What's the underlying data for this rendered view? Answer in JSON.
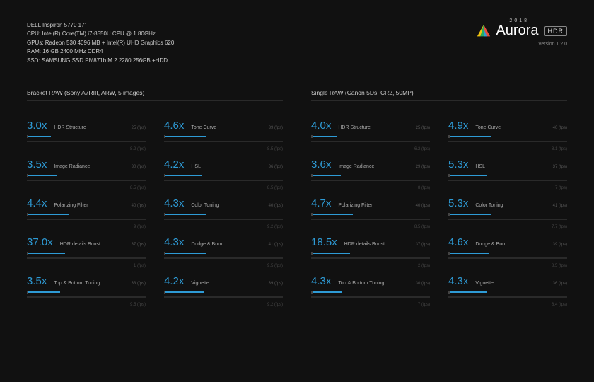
{
  "specs": [
    "DELL Inspiron 5770 17\"",
    "CPU: Intel(R) Core(TM) i7-8550U CPU @ 1.80GHz",
    "GPUs: Radeon 530 4096 MB + Intel(R) UHD Graphics 620",
    "RAM: 16 GB 2400 MHz DDR4",
    "SSD: SAMSUNG SSD PM871b M.2 2280 256GB +HDD"
  ],
  "logo": {
    "year": "2018",
    "name": "Aurora",
    "badge": "HDR",
    "version": "Version 1.2.0"
  },
  "colors": {
    "background": "#111111",
    "accent": "#2e9bd6",
    "bar_bg": "#2a2a2a",
    "text_dim": "#888888",
    "text_faint": "#444444"
  },
  "sections": [
    {
      "title": "Bracket RAW (Sony A7RIII, ARW, 5 images)",
      "metrics": [
        {
          "value": "3.0x",
          "label": "HDR Structure",
          "sub1": "25 (fps)",
          "sub2": "8.2 (fps)",
          "bar_pct": 20
        },
        {
          "value": "4.6x",
          "label": "Tone Curve",
          "sub1": "39 (fps)",
          "sub2": "8.5 (fps)",
          "bar_pct": 35
        },
        {
          "value": "3.5x",
          "label": "Image Radiance",
          "sub1": "30 (fps)",
          "sub2": "8.5 (fps)",
          "bar_pct": 25
        },
        {
          "value": "4.2x",
          "label": "HSL",
          "sub1": "36 (fps)",
          "sub2": "8.5 (fps)",
          "bar_pct": 32
        },
        {
          "value": "4.4x",
          "label": "Polarizing Filter",
          "sub1": "40 (fps)",
          "sub2": "9 (fps)",
          "bar_pct": 36
        },
        {
          "value": "4.3x",
          "label": "Color Toning",
          "sub1": "40 (fps)",
          "sub2": "9.2 (fps)",
          "bar_pct": 35
        },
        {
          "value": "37.0x",
          "label": "HDR details Boost",
          "sub1": "37 (fps)",
          "sub2": "1 (fps)",
          "bar_pct": 32
        },
        {
          "value": "4.3x",
          "label": "Dodge & Burn",
          "sub1": "41 (fps)",
          "sub2": "9.5 (fps)",
          "bar_pct": 36
        },
        {
          "value": "3.5x",
          "label": "Top & Bottom Tuning",
          "sub1": "33 (fps)",
          "sub2": "9.5 (fps)",
          "bar_pct": 28
        },
        {
          "value": "4.2x",
          "label": "Vignette",
          "sub1": "39 (fps)",
          "sub2": "9.2 (fps)",
          "bar_pct": 34
        }
      ]
    },
    {
      "title": "Single RAW (Canon 5Ds, CR2, 50MP)",
      "metrics": [
        {
          "value": "4.0x",
          "label": "HDR Structure",
          "sub1": "25 (fps)",
          "sub2": "6.2 (fps)",
          "bar_pct": 22
        },
        {
          "value": "4.9x",
          "label": "Tone Curve",
          "sub1": "40 (fps)",
          "sub2": "8.1 (fps)",
          "bar_pct": 36
        },
        {
          "value": "3.6x",
          "label": "Image Radiance",
          "sub1": "29 (fps)",
          "sub2": "8 (fps)",
          "bar_pct": 25
        },
        {
          "value": "5.3x",
          "label": "HSL",
          "sub1": "37 (fps)",
          "sub2": "7 (fps)",
          "bar_pct": 33
        },
        {
          "value": "4.7x",
          "label": "Polarizing Filter",
          "sub1": "40 (fps)",
          "sub2": "8.5 (fps)",
          "bar_pct": 35
        },
        {
          "value": "5.3x",
          "label": "Color Toning",
          "sub1": "41 (fps)",
          "sub2": "7.7 (fps)",
          "bar_pct": 36
        },
        {
          "value": "18.5x",
          "label": "HDR details Boost",
          "sub1": "37 (fps)",
          "sub2": "2 (fps)",
          "bar_pct": 33
        },
        {
          "value": "4.6x",
          "label": "Dodge & Burn",
          "sub1": "39 (fps)",
          "sub2": "8.5 (fps)",
          "bar_pct": 34
        },
        {
          "value": "4.3x",
          "label": "Top & Bottom Tuning",
          "sub1": "30 (fps)",
          "sub2": "7 (fps)",
          "bar_pct": 26
        },
        {
          "value": "4.3x",
          "label": "Vignette",
          "sub1": "36 (fps)",
          "sub2": "8.4 (fps)",
          "bar_pct": 32
        }
      ]
    }
  ]
}
